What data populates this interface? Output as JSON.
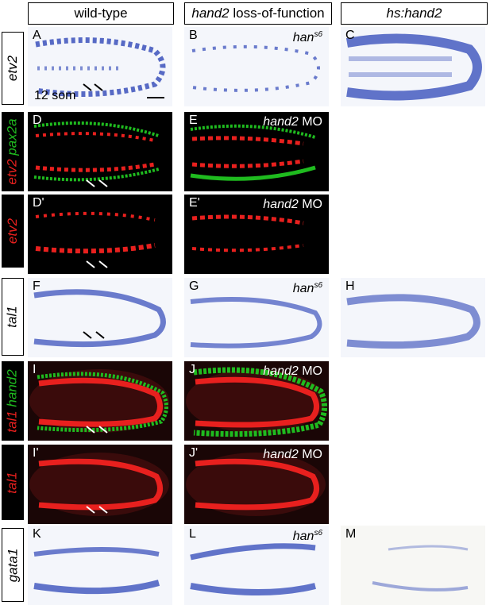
{
  "columns": {
    "wild_type": "wild-type",
    "lof_gene": "hand2",
    "lof_rest": " loss-of-function",
    "hs": "hs:hand2"
  },
  "rows": {
    "etv2": "etv2",
    "etv2_pax2a_a": "etv2",
    "etv2_pax2a_b": " pax2a",
    "etv2_only": "etv2",
    "tal1": "tal1",
    "tal1_hand2_a": "tal1",
    "tal1_hand2_b": " hand2",
    "tal1_only": "tal1",
    "gata1": "gata1"
  },
  "panels": {
    "A": "A",
    "B": "B",
    "C": "C",
    "D": "D",
    "E": "E",
    "Dp": "D'",
    "Ep": "E'",
    "F": "F",
    "G": "G",
    "H": "H",
    "I": "I",
    "J": "J",
    "Ip": "I'",
    "Jp": "J'",
    "K": "K",
    "L": "L",
    "M": "M"
  },
  "tags": {
    "han": "han",
    "han_sup": "s6",
    "mo_gene": "hand2",
    "mo": " MO"
  },
  "stage": "12 som",
  "colors": {
    "insitu_blue": "#2f47b8",
    "fluor_red": "#e8201e",
    "fluor_green": "#1fbb1f",
    "panel_bg_brightfield": "#f4f6fb",
    "panel_bg_fluorescent": "#000000"
  }
}
